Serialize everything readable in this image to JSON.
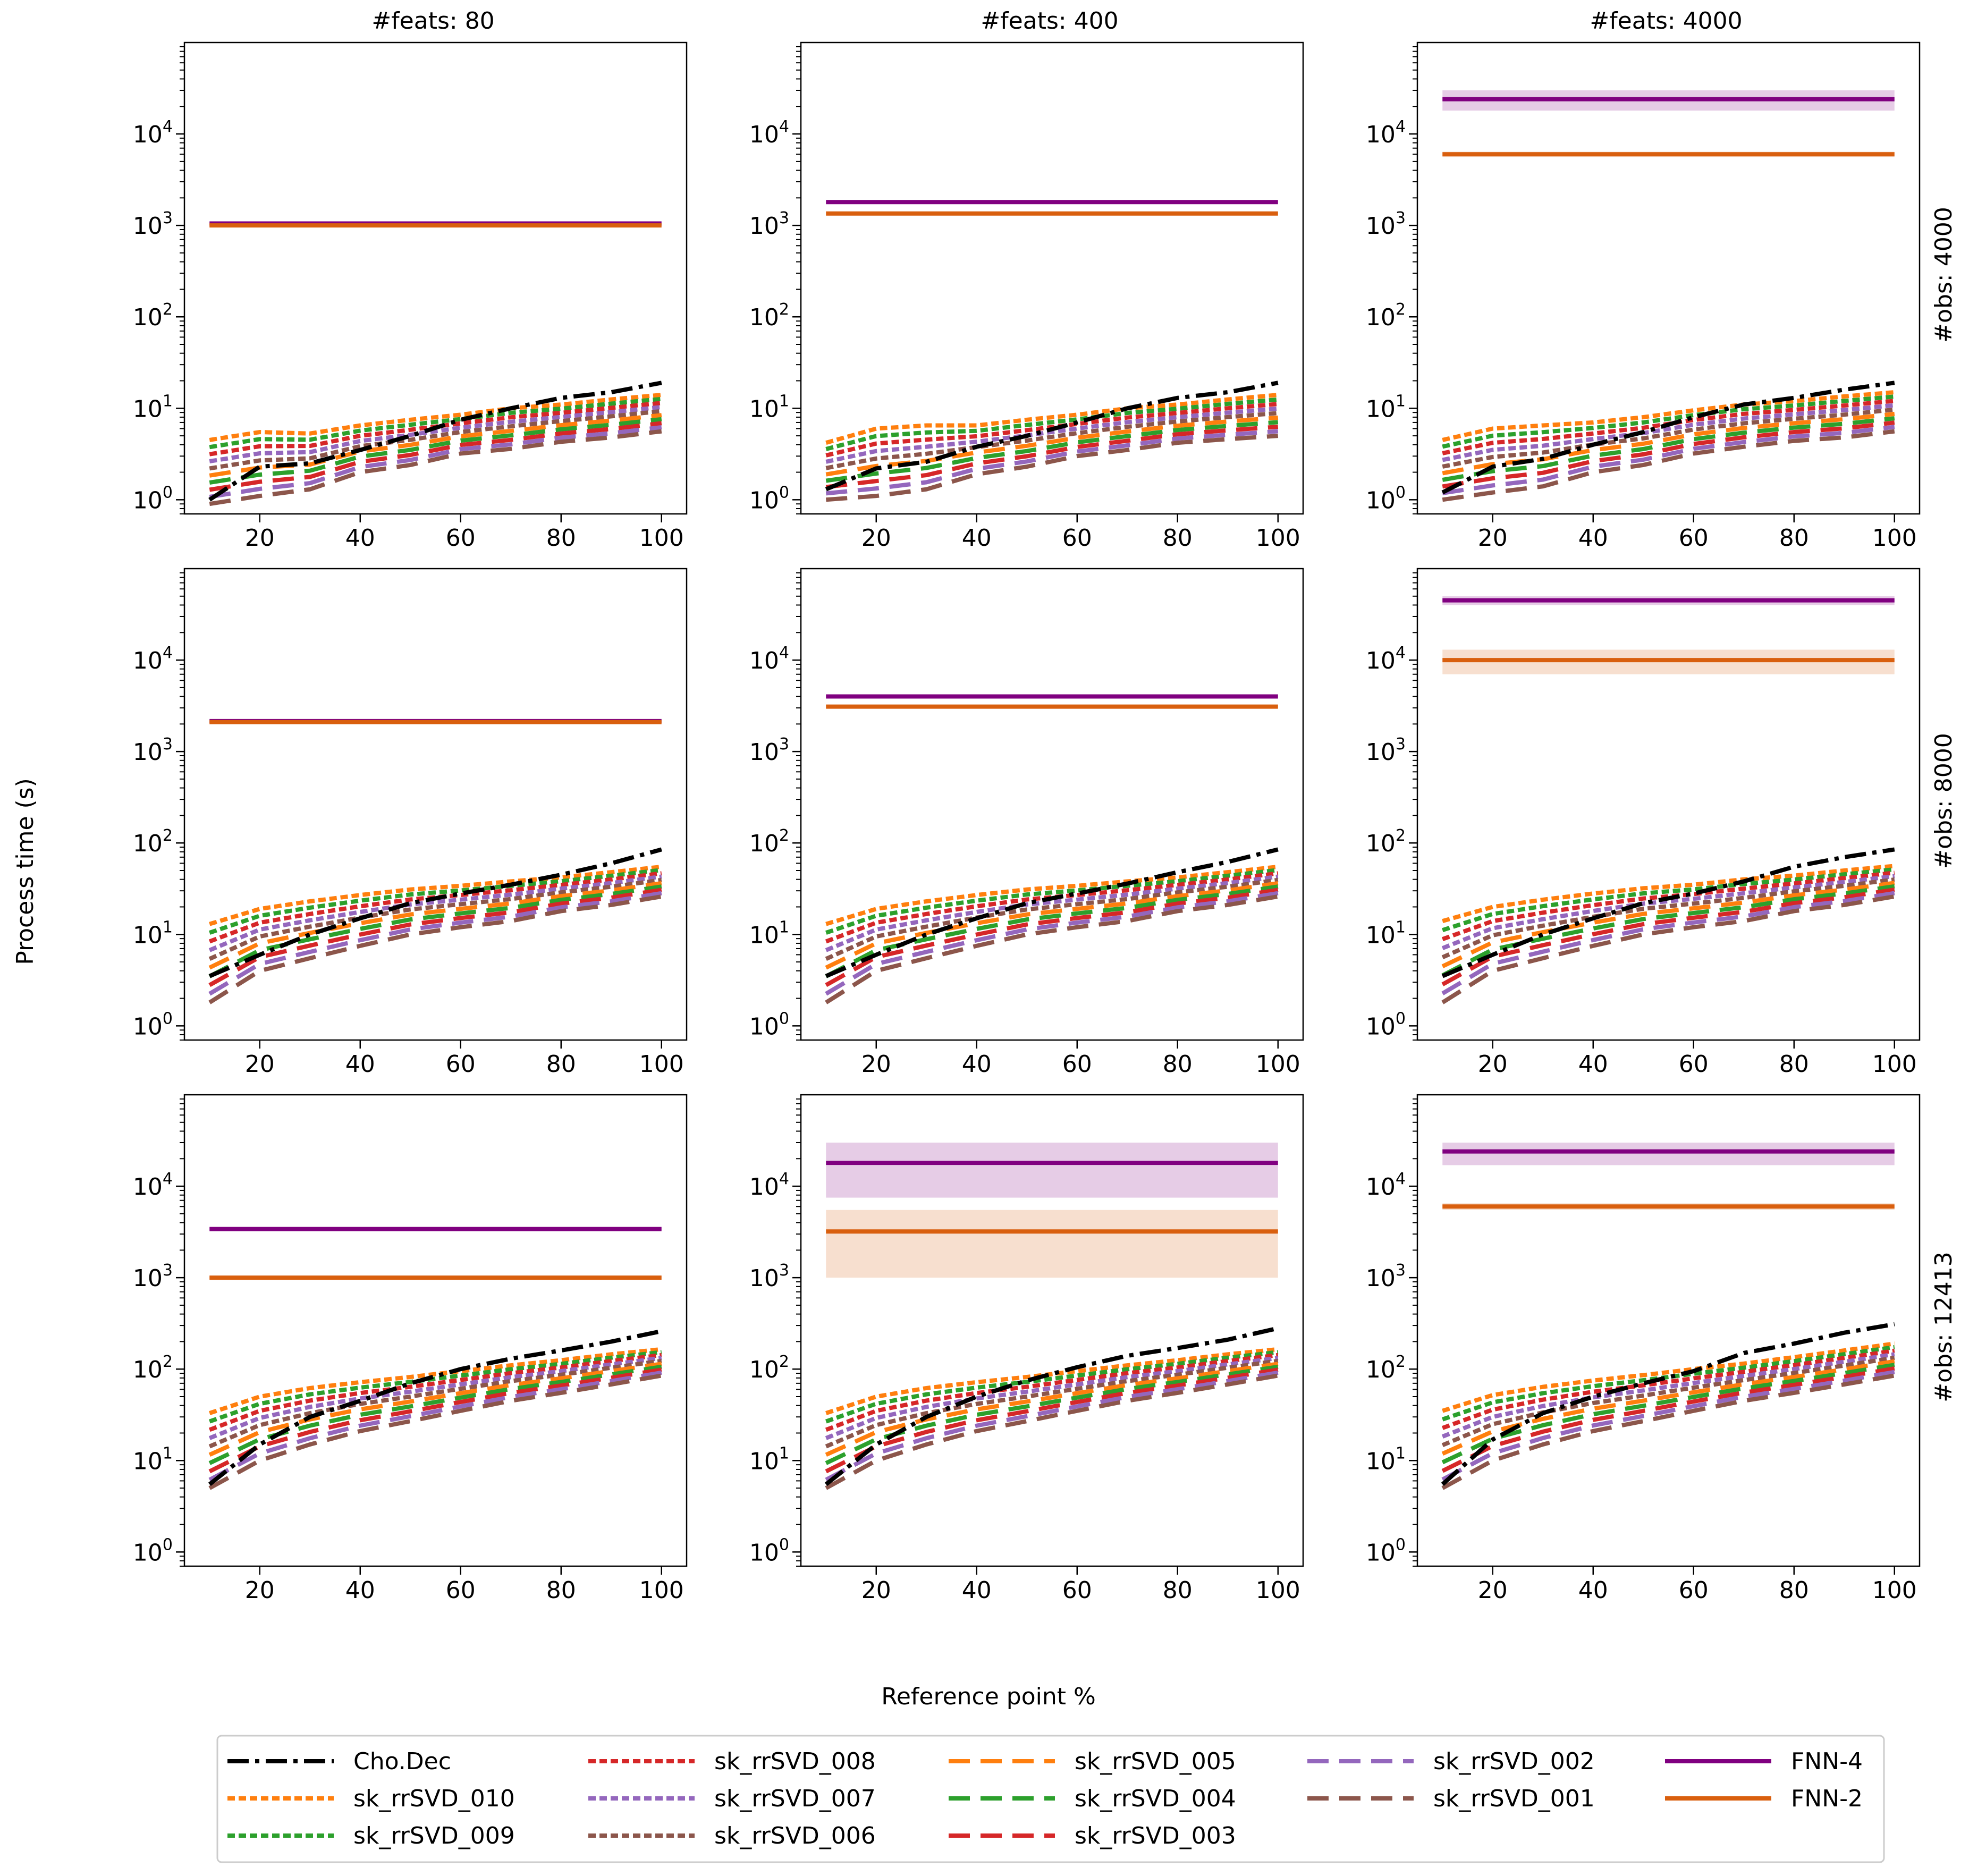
{
  "chart_data": {
    "type": "line",
    "xlabel": "Reference point %",
    "ylabel": "Process time (s)",
    "yscale": "log",
    "ylim": [
      0.7,
      100000
    ],
    "xlim": [
      5,
      105
    ],
    "x_ticks": [
      "20",
      "40",
      "60",
      "80",
      "100"
    ],
    "y_tick_base": "10",
    "y_tick_exps": [
      "0",
      "1",
      "2",
      "3",
      "4"
    ],
    "x": [
      10,
      20,
      30,
      40,
      50,
      60,
      70,
      80,
      90,
      100
    ],
    "col_titles": [
      "#feats: 80",
      "#feats: 400",
      "#feats: 4000"
    ],
    "row_titles": [
      "#obs: 4000",
      "#obs: 8000",
      "#obs: 12413"
    ],
    "legend": {
      "position": "bottom-center",
      "entries": [
        {
          "label": "Cho.Dec",
          "color": "#000000",
          "style": "dashdot"
        },
        {
          "label": "sk_rrSVD_010",
          "color": "#ff7f0e",
          "style": "dotted"
        },
        {
          "label": "sk_rrSVD_009",
          "color": "#2ca02c",
          "style": "dotted"
        },
        {
          "label": "sk_rrSVD_008",
          "color": "#d62728",
          "style": "dotted"
        },
        {
          "label": "sk_rrSVD_007",
          "color": "#9467bd",
          "style": "dotted"
        },
        {
          "label": "sk_rrSVD_006",
          "color": "#8c564b",
          "style": "dotted"
        },
        {
          "label": "sk_rrSVD_005",
          "color": "#ff7f0e",
          "style": "dashed"
        },
        {
          "label": "sk_rrSVD_004",
          "color": "#2ca02c",
          "style": "dashed"
        },
        {
          "label": "sk_rrSVD_003",
          "color": "#d62728",
          "style": "dashed"
        },
        {
          "label": "sk_rrSVD_002",
          "color": "#9467bd",
          "style": "dashed"
        },
        {
          "label": "sk_rrSVD_001",
          "color": "#8c564b",
          "style": "dashed"
        },
        {
          "label": "FNN-4",
          "color": "#800080",
          "style": "solid"
        },
        {
          "label": "FNN-2",
          "color": "#d95f0e",
          "style": "solid"
        }
      ]
    },
    "subplots": [
      {
        "row": 0,
        "col": 0,
        "fnn4": {
          "value": 1050,
          "band": [
            1000,
            1100
          ]
        },
        "fnn2": {
          "value": 1000,
          "band": [
            960,
            1040
          ]
        },
        "cho": [
          1.0,
          2.3,
          2.5,
          3.5,
          5,
          7.5,
          10,
          13,
          15,
          19
        ],
        "svd_top": [
          4.5,
          5.5,
          5.3,
          6.5,
          7.5,
          8.5,
          10,
          11,
          12.5,
          14
        ],
        "svd_bottom": [
          0.9,
          1.1,
          1.3,
          2.0,
          2.4,
          3.2,
          3.6,
          4.3,
          4.8,
          5.6
        ]
      },
      {
        "row": 0,
        "col": 1,
        "fnn4": {
          "value": 1800,
          "band": [
            1750,
            1850
          ]
        },
        "fnn2": {
          "value": 1350,
          "band": [
            1300,
            1400
          ]
        },
        "cho": [
          1.3,
          2.2,
          2.6,
          3.8,
          5,
          7,
          10,
          13,
          15,
          19
        ],
        "svd_top": [
          4.2,
          6,
          6.5,
          6.5,
          7.5,
          8.5,
          10,
          11,
          12.5,
          14
        ],
        "svd_bottom": [
          1.0,
          1.1,
          1.3,
          1.9,
          2.3,
          3.0,
          3.5,
          4.2,
          4.6,
          5.0
        ]
      },
      {
        "row": 0,
        "col": 2,
        "fnn4": {
          "value": 24000,
          "band": [
            18000,
            30000
          ]
        },
        "fnn2": {
          "value": 6000,
          "band": [
            5600,
            6400
          ]
        },
        "cho": [
          1.2,
          2.3,
          2.8,
          4.0,
          5.5,
          8,
          11,
          13,
          16,
          19
        ],
        "svd_top": [
          4.5,
          6,
          6.5,
          7,
          8,
          9.5,
          11,
          12,
          13.5,
          15
        ],
        "svd_bottom": [
          1.0,
          1.2,
          1.4,
          2.0,
          2.4,
          3.2,
          3.8,
          4.4,
          4.8,
          5.6
        ]
      },
      {
        "row": 1,
        "col": 0,
        "fnn4": {
          "value": 2150,
          "band": [
            2050,
            2250
          ]
        },
        "fnn2": {
          "value": 2100,
          "band": [
            2000,
            2200
          ]
        },
        "cho": [
          3.5,
          6,
          10,
          15,
          22,
          28,
          35,
          45,
          60,
          85
        ],
        "svd_top": [
          13,
          19,
          23,
          27,
          31,
          34,
          38,
          42,
          48,
          55
        ],
        "svd_bottom": [
          1.8,
          4.0,
          5.5,
          7.5,
          10,
          12,
          14,
          18,
          21,
          26
        ]
      },
      {
        "row": 1,
        "col": 1,
        "fnn4": {
          "value": 4000,
          "band": [
            3900,
            4100
          ]
        },
        "fnn2": {
          "value": 3100,
          "band": [
            3000,
            3200
          ]
        },
        "cho": [
          3.5,
          6,
          10,
          15,
          22,
          28,
          36,
          48,
          62,
          85
        ],
        "svd_top": [
          13,
          19,
          23,
          27,
          31,
          34,
          38,
          42,
          48,
          55
        ],
        "svd_bottom": [
          1.8,
          4.0,
          5.5,
          7.5,
          10,
          12,
          14,
          18,
          21,
          26
        ]
      },
      {
        "row": 1,
        "col": 2,
        "fnn4": {
          "value": 45000,
          "band": [
            40000,
            50000
          ]
        },
        "fnn2": {
          "value": 10000,
          "band": [
            7000,
            13000
          ]
        },
        "cho": [
          3.5,
          6,
          10,
          15,
          22,
          28,
          38,
          55,
          70,
          85
        ],
        "svd_top": [
          14,
          20,
          24,
          28,
          32,
          35,
          40,
          44,
          50,
          56
        ],
        "svd_bottom": [
          1.8,
          4.0,
          5.5,
          7.5,
          10,
          12,
          14,
          18,
          21,
          26
        ]
      },
      {
        "row": 2,
        "col": 0,
        "fnn4": {
          "value": 3400,
          "band": [
            3300,
            3500
          ]
        },
        "fnn2": {
          "value": 1000,
          "band": [
            970,
            1030
          ]
        },
        "cho": [
          5.5,
          15,
          30,
          45,
          70,
          100,
          130,
          160,
          200,
          260
        ],
        "svd_top": [
          33,
          50,
          62,
          72,
          82,
          95,
          110,
          125,
          145,
          165
        ],
        "svd_bottom": [
          5.0,
          10,
          15,
          21,
          27,
          35,
          45,
          55,
          68,
          85
        ]
      },
      {
        "row": 2,
        "col": 1,
        "fnn4": {
          "value": 18000,
          "band": [
            7500,
            30000
          ]
        },
        "fnn2": {
          "value": 3200,
          "band": [
            1000,
            5500
          ]
        },
        "cho": [
          5.5,
          15,
          30,
          50,
          75,
          105,
          140,
          170,
          210,
          280
        ],
        "svd_top": [
          33,
          50,
          62,
          72,
          82,
          95,
          110,
          125,
          145,
          165
        ],
        "svd_bottom": [
          5.0,
          10,
          15,
          21,
          27,
          35,
          45,
          55,
          68,
          85
        ]
      },
      {
        "row": 2,
        "col": 2,
        "fnn4": {
          "value": 24000,
          "band": [
            17000,
            30000
          ]
        },
        "fnn2": {
          "value": 6000,
          "band": [
            5500,
            6500
          ]
        },
        "cho": [
          5.5,
          17,
          33,
          50,
          70,
          95,
          150,
          190,
          250,
          310
        ],
        "svd_top": [
          35,
          52,
          64,
          75,
          86,
          100,
          115,
          135,
          160,
          190
        ],
        "svd_bottom": [
          5.0,
          10,
          15,
          21,
          27,
          35,
          45,
          55,
          68,
          85
        ]
      }
    ]
  }
}
